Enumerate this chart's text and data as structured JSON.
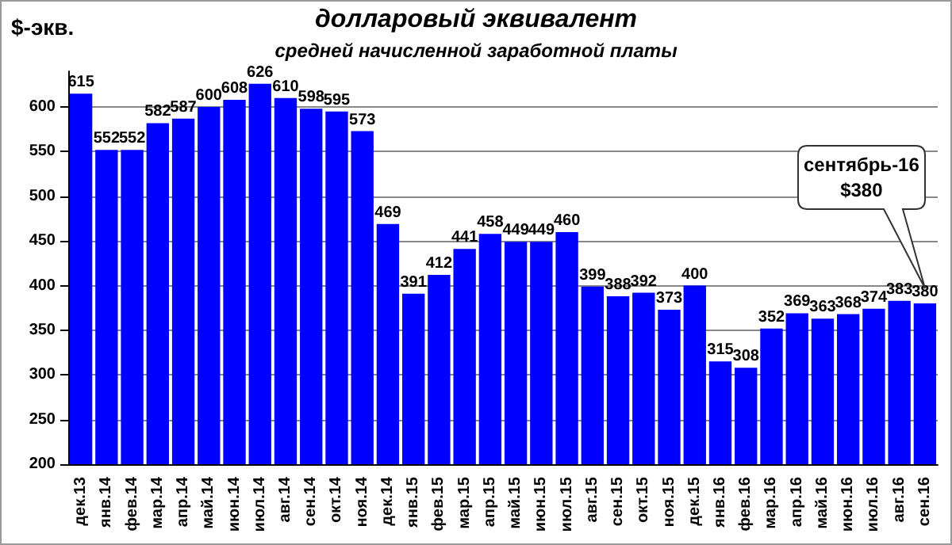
{
  "chart_data": {
    "type": "bar",
    "title": "долларовый эквивалент",
    "subtitle": "средней начисленной заработной платы",
    "ylabel": "$-экв.",
    "categories": [
      "дек.13",
      "янв.14",
      "фев.14",
      "мар.14",
      "апр.14",
      "май.14",
      "июн.14",
      "июл.14",
      "авг.14",
      "сен.14",
      "окт.14",
      "ноя.14",
      "дек.14",
      "янв.15",
      "фев.15",
      "мар.15",
      "апр.15",
      "май.15",
      "июн.15",
      "июл.15",
      "авг.15",
      "сен.15",
      "окт.15",
      "ноя.15",
      "дек.15",
      "янв.16",
      "фев.16",
      "мар.16",
      "апр.16",
      "май.16",
      "июн.16",
      "июл.16",
      "авг.16",
      "сен.16"
    ],
    "values": [
      615,
      552,
      552,
      582,
      587,
      600,
      608,
      626,
      610,
      598,
      595,
      573,
      469,
      391,
      412,
      441,
      458,
      449,
      449,
      460,
      399,
      388,
      392,
      373,
      400,
      315,
      308,
      352,
      369,
      363,
      368,
      374,
      383,
      380
    ],
    "color": "#0000ff",
    "ylim": [
      200,
      640
    ],
    "yticks": [
      200,
      250,
      300,
      350,
      400,
      450,
      500,
      550,
      600
    ],
    "grid": "y",
    "data_labels": true,
    "annotations": [
      "сентябрь-16\n$380"
    ]
  }
}
